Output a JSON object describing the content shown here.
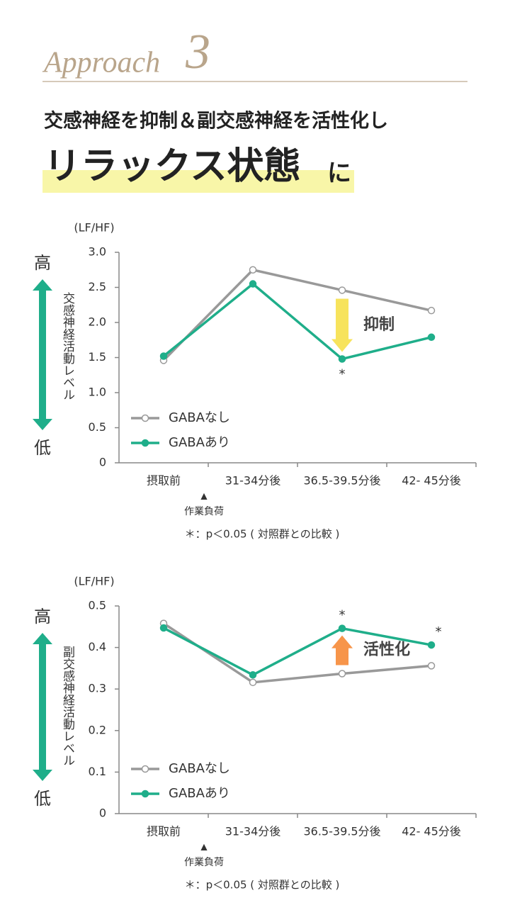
{
  "header": {
    "approach": "Approach",
    "number": "3",
    "line1": "交感神経を抑制＆副交感神経を活性化し",
    "line2": "リラックス状態",
    "line2_suffix": "に"
  },
  "chart_data": [
    {
      "type": "line",
      "ylabel": "(LF/HF)",
      "side_label": "交感神経活動レベル",
      "high_label": "高",
      "low_label": "低",
      "categories": [
        "摂取前",
        "31-34分後",
        "36.5-39.5分後",
        "42- 45分後"
      ],
      "series": [
        {
          "name": "GABAなし",
          "color": "#999999",
          "values": [
            1.46,
            2.75,
            2.46,
            2.17
          ]
        },
        {
          "name": "GABAあり",
          "color": "#1fae8a",
          "values": [
            1.52,
            2.55,
            1.48,
            1.79
          ],
          "significance_labels": [
            null,
            null,
            "*",
            null
          ]
        }
      ],
      "annotation": "抑制",
      "annotation_color": "#f7e35c",
      "ylim": [
        0,
        3.0
      ],
      "yticks": [
        {
          "value": 3.0,
          "label": "3.0"
        },
        2.5,
        {
          "value": 2.0,
          "label": "2.0"
        },
        1.5,
        {
          "value": 1.0,
          "label": "1.0"
        },
        0.5,
        0
      ],
      "load_marker": "▲",
      "load_label": "作業負荷",
      "note": "＊：p＜0.05 ( 対照群との比較 )"
    },
    {
      "type": "line",
      "ylabel": "(LF/HF)",
      "side_label": "副交感神経活動レベル",
      "high_label": "高",
      "low_label": "低",
      "categories": [
        "摂取前",
        "31-34分後",
        "36.5-39.5分後",
        "42- 45分後"
      ],
      "series": [
        {
          "name": "GABAなし",
          "color": "#999999",
          "values": [
            0.458,
            0.316,
            0.337,
            0.356
          ]
        },
        {
          "name": "GABAあり",
          "color": "#1fae8a",
          "values": [
            0.447,
            0.334,
            0.446,
            0.406
          ],
          "significance_labels": [
            null,
            null,
            "*",
            "*"
          ]
        }
      ],
      "annotation": "活性化",
      "annotation_color": "#f7954a",
      "ylim": [
        0,
        0.5
      ],
      "yticks": [
        0.5,
        0.4,
        0.3,
        0.2,
        0.1,
        0
      ],
      "load_marker": "▲",
      "load_label": "作業負荷",
      "note": "＊：p＜0.05 ( 対照群との比較 )"
    }
  ]
}
